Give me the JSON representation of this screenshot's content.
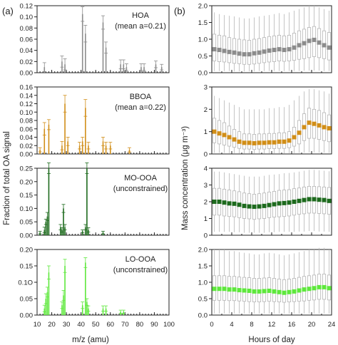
{
  "panel_labels": {
    "left": "(a)",
    "right": "(b)"
  },
  "xlabels": {
    "left": "m/z (amu)",
    "right": "Hours of day"
  },
  "ylabels": {
    "left": "Fraction of total OA signal",
    "right": "Mass concentration (μg m⁻³)"
  },
  "colors": {
    "HOA": "#8c8c8c",
    "BBOA": "#d18e18",
    "MO-OOA": "#1d6a1d",
    "LO-OOA": "#5ee83c",
    "box": "#b5b5b5"
  },
  "chart_data": [
    {
      "type": "bar",
      "factor": "HOA",
      "title": [
        "HOA",
        "(mean a=0.21)"
      ],
      "x": [
        15,
        27,
        29,
        41,
        43,
        55,
        57,
        67,
        69,
        71,
        81,
        83,
        91,
        95
      ],
      "values": [
        0.01,
        0.02,
        0.015,
        0.105,
        0.07,
        0.09,
        0.045,
        0.015,
        0.015,
        0.01,
        0.01,
        0.01,
        0.015,
        0.01
      ],
      "errors": [
        0.008,
        0.01,
        0.01,
        0.013,
        0.015,
        0.012,
        0.01,
        0.008,
        0.008,
        0.006,
        0.006,
        0.006,
        0.006,
        0.005
      ],
      "xlim": [
        10,
        100
      ],
      "ylim": [
        0,
        0.12
      ],
      "yticks": [
        0.0,
        0.02,
        0.04,
        0.06,
        0.08,
        0.1,
        0.12
      ]
    },
    {
      "type": "bar",
      "factor": "BBOA",
      "title": [
        "BBOA",
        "(mean a=0.22)"
      ],
      "x": [
        12,
        15,
        18,
        27,
        29,
        31,
        39,
        41,
        43,
        45,
        55,
        57,
        60,
        73
      ],
      "values": [
        0.01,
        0.06,
        0.07,
        0.02,
        0.12,
        0.03,
        0.02,
        0.03,
        0.11,
        0.02,
        0.03,
        0.02,
        0.02,
        0.01
      ],
      "errors": [
        0.005,
        0.015,
        0.012,
        0.01,
        0.02,
        0.01,
        0.008,
        0.01,
        0.02,
        0.008,
        0.01,
        0.008,
        0.008,
        0.005
      ],
      "xlim": [
        10,
        100
      ],
      "ylim": [
        0,
        0.16
      ],
      "yticks": [
        0.0,
        0.02,
        0.04,
        0.06,
        0.08,
        0.1,
        0.12,
        0.14,
        0.16
      ]
    },
    {
      "type": "bar",
      "factor": "MO-OOA",
      "title": [
        "MO-OOA",
        "(unconstrained)"
      ],
      "x": [
        12,
        15,
        16,
        17,
        18,
        26,
        27,
        28,
        29,
        41,
        43,
        44,
        45,
        55
      ],
      "values": [
        0.01,
        0.02,
        0.05,
        0.07,
        0.25,
        0.03,
        0.02,
        0.1,
        0.03,
        0.015,
        0.03,
        0.25,
        0.02,
        0.01
      ],
      "errors": [
        0.005,
        0.01,
        0.01,
        0.015,
        0.02,
        0.01,
        0.008,
        0.015,
        0.01,
        0.005,
        0.01,
        0.02,
        0.008,
        0.005
      ],
      "xlim": [
        10,
        100
      ],
      "ylim": [
        0,
        0.25
      ],
      "yticks": [
        0.0,
        0.05,
        0.1,
        0.15,
        0.2,
        0.25
      ]
    },
    {
      "type": "bar",
      "factor": "LO-OOA",
      "title": [
        "LO-OOA",
        "(unconstrained)"
      ],
      "x": [
        15,
        16,
        17,
        18,
        27,
        28,
        29,
        41,
        43,
        44,
        45,
        55,
        57,
        67,
        69
      ],
      "values": [
        0.02,
        0.05,
        0.07,
        0.13,
        0.03,
        0.06,
        0.15,
        0.03,
        0.16,
        0.04,
        0.02,
        0.02,
        0.02,
        0.01,
        0.01
      ],
      "errors": [
        0.01,
        0.015,
        0.015,
        0.02,
        0.01,
        0.015,
        0.02,
        0.01,
        0.015,
        0.01,
        0.008,
        0.008,
        0.008,
        0.005,
        0.005
      ],
      "xlim": [
        10,
        100
      ],
      "ylim": [
        0,
        0.2
      ],
      "yticks": [
        0.0,
        0.05,
        "0.1O",
        0.15,
        0.2
      ]
    },
    {
      "type": "box",
      "factor": "HOA",
      "x": "hour",
      "xlim": [
        0,
        24
      ],
      "ylim": [
        0,
        2.0
      ],
      "yticks": [
        0.0,
        0.5,
        1.0,
        1.5,
        2.0
      ],
      "median": [
        0.7,
        0.68,
        0.65,
        0.62,
        0.6,
        0.57,
        0.55,
        0.55,
        0.58,
        0.6,
        0.63,
        0.66,
        0.68,
        0.7,
        0.68,
        0.7,
        0.75,
        0.82,
        0.88,
        0.95,
        0.98,
        0.9,
        0.82,
        0.75
      ],
      "q1": [
        0.35,
        0.33,
        0.32,
        0.3,
        0.28,
        0.27,
        0.25,
        0.25,
        0.26,
        0.28,
        0.3,
        0.32,
        0.33,
        0.35,
        0.34,
        0.35,
        0.37,
        0.4,
        0.42,
        0.45,
        0.48,
        0.45,
        0.42,
        0.38
      ],
      "q3": [
        1.15,
        1.12,
        1.1,
        1.05,
        1.02,
        1.0,
        0.98,
        0.97,
        1.0,
        1.02,
        1.05,
        1.08,
        1.1,
        1.12,
        1.1,
        1.12,
        1.18,
        1.25,
        1.3,
        1.35,
        1.38,
        1.32,
        1.25,
        1.2
      ],
      "whisker_low": [
        0.05,
        0.05,
        0.05,
        0.05,
        0.04,
        0.04,
        0.04,
        0.04,
        0.04,
        0.05,
        0.05,
        0.05,
        0.05,
        0.05,
        0.05,
        0.05,
        0.05,
        0.05,
        0.06,
        0.06,
        0.06,
        0.06,
        0.05,
        0.05
      ],
      "whisker_high": [
        1.8,
        1.75,
        1.72,
        1.7,
        1.68,
        1.65,
        1.62,
        1.62,
        1.65,
        1.68,
        1.7,
        1.72,
        1.75,
        1.78,
        1.75,
        1.8,
        1.85,
        1.9,
        1.95,
        2.0,
        2.0,
        1.95,
        1.9,
        1.85
      ]
    },
    {
      "type": "box",
      "factor": "BBOA",
      "x": "hour",
      "xlim": [
        0,
        24
      ],
      "ylim": [
        0,
        3
      ],
      "yticks": [
        0,
        1,
        2,
        3
      ],
      "median": [
        1.0,
        0.92,
        0.85,
        0.75,
        0.65,
        0.55,
        0.5,
        0.5,
        0.48,
        0.5,
        0.5,
        0.52,
        0.52,
        0.55,
        0.55,
        0.6,
        0.75,
        0.95,
        1.2,
        1.4,
        1.35,
        1.28,
        1.2,
        1.15
      ],
      "q1": [
        0.5,
        0.45,
        0.4,
        0.35,
        0.3,
        0.25,
        0.22,
        0.22,
        0.2,
        0.22,
        0.22,
        0.24,
        0.24,
        0.25,
        0.25,
        0.28,
        0.35,
        0.45,
        0.6,
        0.7,
        0.7,
        0.65,
        0.6,
        0.55
      ],
      "q3": [
        1.6,
        1.5,
        1.4,
        1.25,
        1.1,
        1.0,
        0.9,
        0.9,
        0.88,
        0.9,
        0.9,
        0.92,
        0.92,
        0.95,
        0.95,
        1.0,
        1.2,
        1.5,
        1.8,
        2.05,
        2.0,
        1.95,
        1.85,
        1.75
      ],
      "whisker_low": [
        0.05,
        0.05,
        0.05,
        0.04,
        0.04,
        0.03,
        0.03,
        0.03,
        0.03,
        0.03,
        0.03,
        0.03,
        0.03,
        0.03,
        0.03,
        0.04,
        0.04,
        0.05,
        0.06,
        0.07,
        0.07,
        0.06,
        0.06,
        0.05
      ],
      "whisker_high": [
        2.6,
        2.5,
        2.4,
        2.3,
        2.2,
        2.1,
        2.0,
        2.0,
        2.0,
        2.0,
        2.0,
        2.05,
        2.05,
        2.1,
        2.1,
        2.2,
        2.4,
        2.6,
        2.8,
        2.9,
        2.9,
        2.85,
        2.8,
        2.7
      ]
    },
    {
      "type": "box",
      "factor": "MO-OOA",
      "x": "hour",
      "xlim": [
        0,
        24
      ],
      "ylim": [
        0,
        4
      ],
      "yticks": [
        0,
        1,
        2,
        3,
        4
      ],
      "median": [
        2.0,
        2.0,
        1.95,
        1.9,
        1.88,
        1.82,
        1.75,
        1.72,
        1.7,
        1.72,
        1.75,
        1.8,
        1.85,
        1.9,
        1.92,
        1.95,
        2.0,
        2.05,
        2.1,
        2.15,
        2.15,
        2.12,
        2.1,
        2.05
      ],
      "q1": [
        1.2,
        1.2,
        1.15,
        1.12,
        1.1,
        1.05,
        1.0,
        0.98,
        0.95,
        0.98,
        1.0,
        1.05,
        1.08,
        1.1,
        1.12,
        1.15,
        1.2,
        1.25,
        1.28,
        1.32,
        1.32,
        1.3,
        1.28,
        1.25
      ],
      "q3": [
        2.8,
        2.8,
        2.75,
        2.7,
        2.65,
        2.6,
        2.52,
        2.48,
        2.45,
        2.48,
        2.52,
        2.58,
        2.62,
        2.68,
        2.7,
        2.72,
        2.78,
        2.82,
        2.88,
        2.92,
        2.92,
        2.9,
        2.88,
        2.85
      ],
      "whisker_low": [
        0.2,
        0.2,
        0.2,
        0.2,
        0.18,
        0.18,
        0.15,
        0.15,
        0.15,
        0.15,
        0.15,
        0.18,
        0.18,
        0.2,
        0.2,
        0.2,
        0.2,
        0.22,
        0.22,
        0.25,
        0.25,
        0.22,
        0.22,
        0.2
      ],
      "whisker_high": [
        3.8,
        3.8,
        3.75,
        3.7,
        3.65,
        3.6,
        3.55,
        3.5,
        3.5,
        3.5,
        3.55,
        3.6,
        3.62,
        3.65,
        3.7,
        3.72,
        3.75,
        3.8,
        3.85,
        3.9,
        3.9,
        3.88,
        3.85,
        3.82
      ]
    },
    {
      "type": "box",
      "factor": "LO-OOA",
      "x": "hour",
      "xlim": [
        0,
        24
      ],
      "ylim": [
        0,
        2.0
      ],
      "yticks": [
        0.0,
        0.5,
        1.0,
        1.5,
        2.0
      ],
      "median": [
        0.8,
        0.8,
        0.8,
        0.78,
        0.78,
        0.76,
        0.75,
        0.74,
        0.72,
        0.72,
        0.73,
        0.74,
        0.72,
        0.7,
        0.68,
        0.7,
        0.72,
        0.75,
        0.78,
        0.8,
        0.82,
        0.85,
        0.85,
        0.82
      ],
      "q1": [
        0.45,
        0.45,
        0.45,
        0.44,
        0.44,
        0.43,
        0.42,
        0.41,
        0.4,
        0.4,
        0.41,
        0.42,
        0.41,
        0.4,
        0.39,
        0.4,
        0.41,
        0.42,
        0.43,
        0.45,
        0.46,
        0.48,
        0.48,
        0.46
      ],
      "q3": [
        1.2,
        1.2,
        1.2,
        1.18,
        1.18,
        1.16,
        1.15,
        1.14,
        1.12,
        1.12,
        1.13,
        1.14,
        1.12,
        1.1,
        1.08,
        1.1,
        1.12,
        1.15,
        1.18,
        1.2,
        1.22,
        1.25,
        1.25,
        1.22
      ],
      "whisker_low": [
        0.05,
        0.05,
        0.05,
        0.05,
        0.05,
        0.05,
        0.05,
        0.05,
        0.05,
        0.05,
        0.05,
        0.05,
        0.05,
        0.05,
        0.05,
        0.05,
        0.05,
        0.05,
        0.05,
        0.05,
        0.05,
        0.05,
        0.05,
        0.05
      ],
      "whisker_high": [
        2.0,
        2.0,
        2.0,
        1.95,
        1.95,
        1.92,
        1.9,
        1.88,
        1.85,
        1.85,
        1.88,
        1.9,
        1.88,
        1.85,
        1.82,
        1.85,
        1.88,
        1.92,
        1.95,
        2.0,
        2.0,
        2.05,
        2.05,
        2.0
      ]
    }
  ],
  "bottom_ticks": {
    "left": [
      10,
      20,
      30,
      40,
      50,
      60,
      70,
      80,
      90,
      100
    ],
    "right": [
      0,
      4,
      8,
      12,
      16,
      20,
      24
    ]
  }
}
